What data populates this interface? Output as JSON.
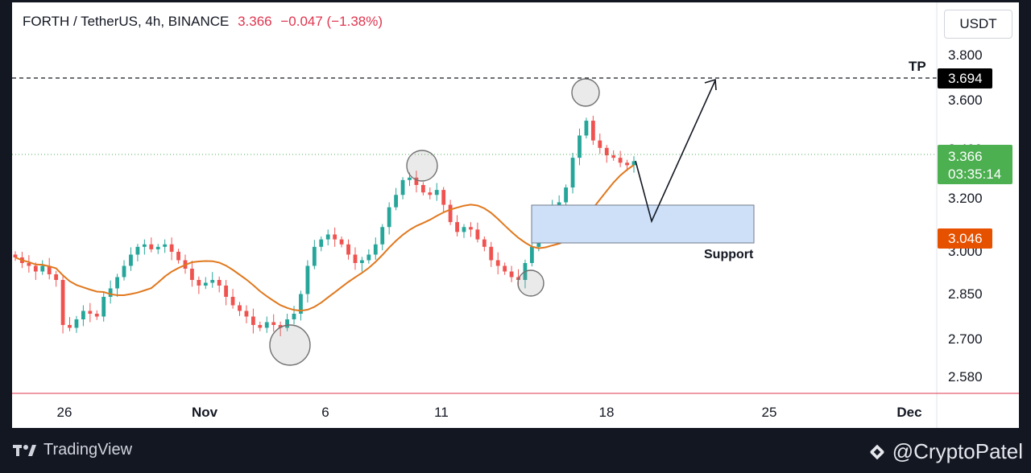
{
  "header": {
    "symbol": "FORTH / TetherUS, 4h, BINANCE",
    "price": "3.366",
    "change": "−0.047 (−1.38%)"
  },
  "unit_button": "USDT",
  "chart_data": {
    "type": "candlestick",
    "title": "FORTH / TetherUS, 4h, BINANCE",
    "ylim": [
      2.52,
      3.86
    ],
    "y_ticks": [
      "3.800",
      "3.600",
      "3.400",
      "3.200",
      "3.000",
      "2.850",
      "2.700",
      "2.580"
    ],
    "x_ticks": [
      "26",
      "Nov",
      "6",
      "11",
      "18",
      "25",
      "Dec"
    ],
    "current_price": "3.366",
    "countdown": "03:35:14",
    "ma_value": "3.046",
    "tp_value": "3.694",
    "tp_label": "TP",
    "support_label": "Support",
    "support_zone": [
      3.04,
      3.17
    ],
    "approx_closes": [
      2.98,
      2.96,
      2.95,
      2.93,
      2.95,
      2.92,
      2.9,
      2.74,
      2.73,
      2.76,
      2.79,
      2.78,
      2.77,
      2.84,
      2.87,
      2.91,
      2.95,
      2.99,
      3.02,
      3.03,
      3.01,
      3.02,
      3.03,
      3.0,
      2.97,
      2.94,
      2.9,
      2.88,
      2.89,
      2.9,
      2.88,
      2.84,
      2.81,
      2.79,
      2.77,
      2.74,
      2.73,
      2.75,
      2.74,
      2.73,
      2.76,
      2.78,
      2.85,
      2.95,
      3.02,
      3.05,
      3.07,
      3.05,
      3.03,
      2.99,
      2.96,
      2.97,
      2.99,
      3.03,
      3.1,
      3.18,
      3.23,
      3.29,
      3.3,
      3.27,
      3.24,
      3.23,
      3.25,
      3.19,
      3.12,
      3.08,
      3.1,
      3.09,
      3.05,
      3.02,
      2.97,
      2.95,
      2.93,
      2.91,
      2.9,
      2.96,
      3.02,
      3.1,
      3.17,
      3.19,
      3.2,
      3.26,
      3.38,
      3.47,
      3.53,
      3.45,
      3.42,
      3.39,
      3.38,
      3.36,
      3.35,
      3.366
    ]
  },
  "footer": {
    "brand": "TradingView",
    "handle": "@CryptoPatel"
  },
  "colors": {
    "up": "#26a69a",
    "down": "#ef5350",
    "ma": "#e0781e",
    "price_badge": "#4caf50",
    "ma_badge": "#e65100",
    "support_zone": "#cde0f8"
  }
}
